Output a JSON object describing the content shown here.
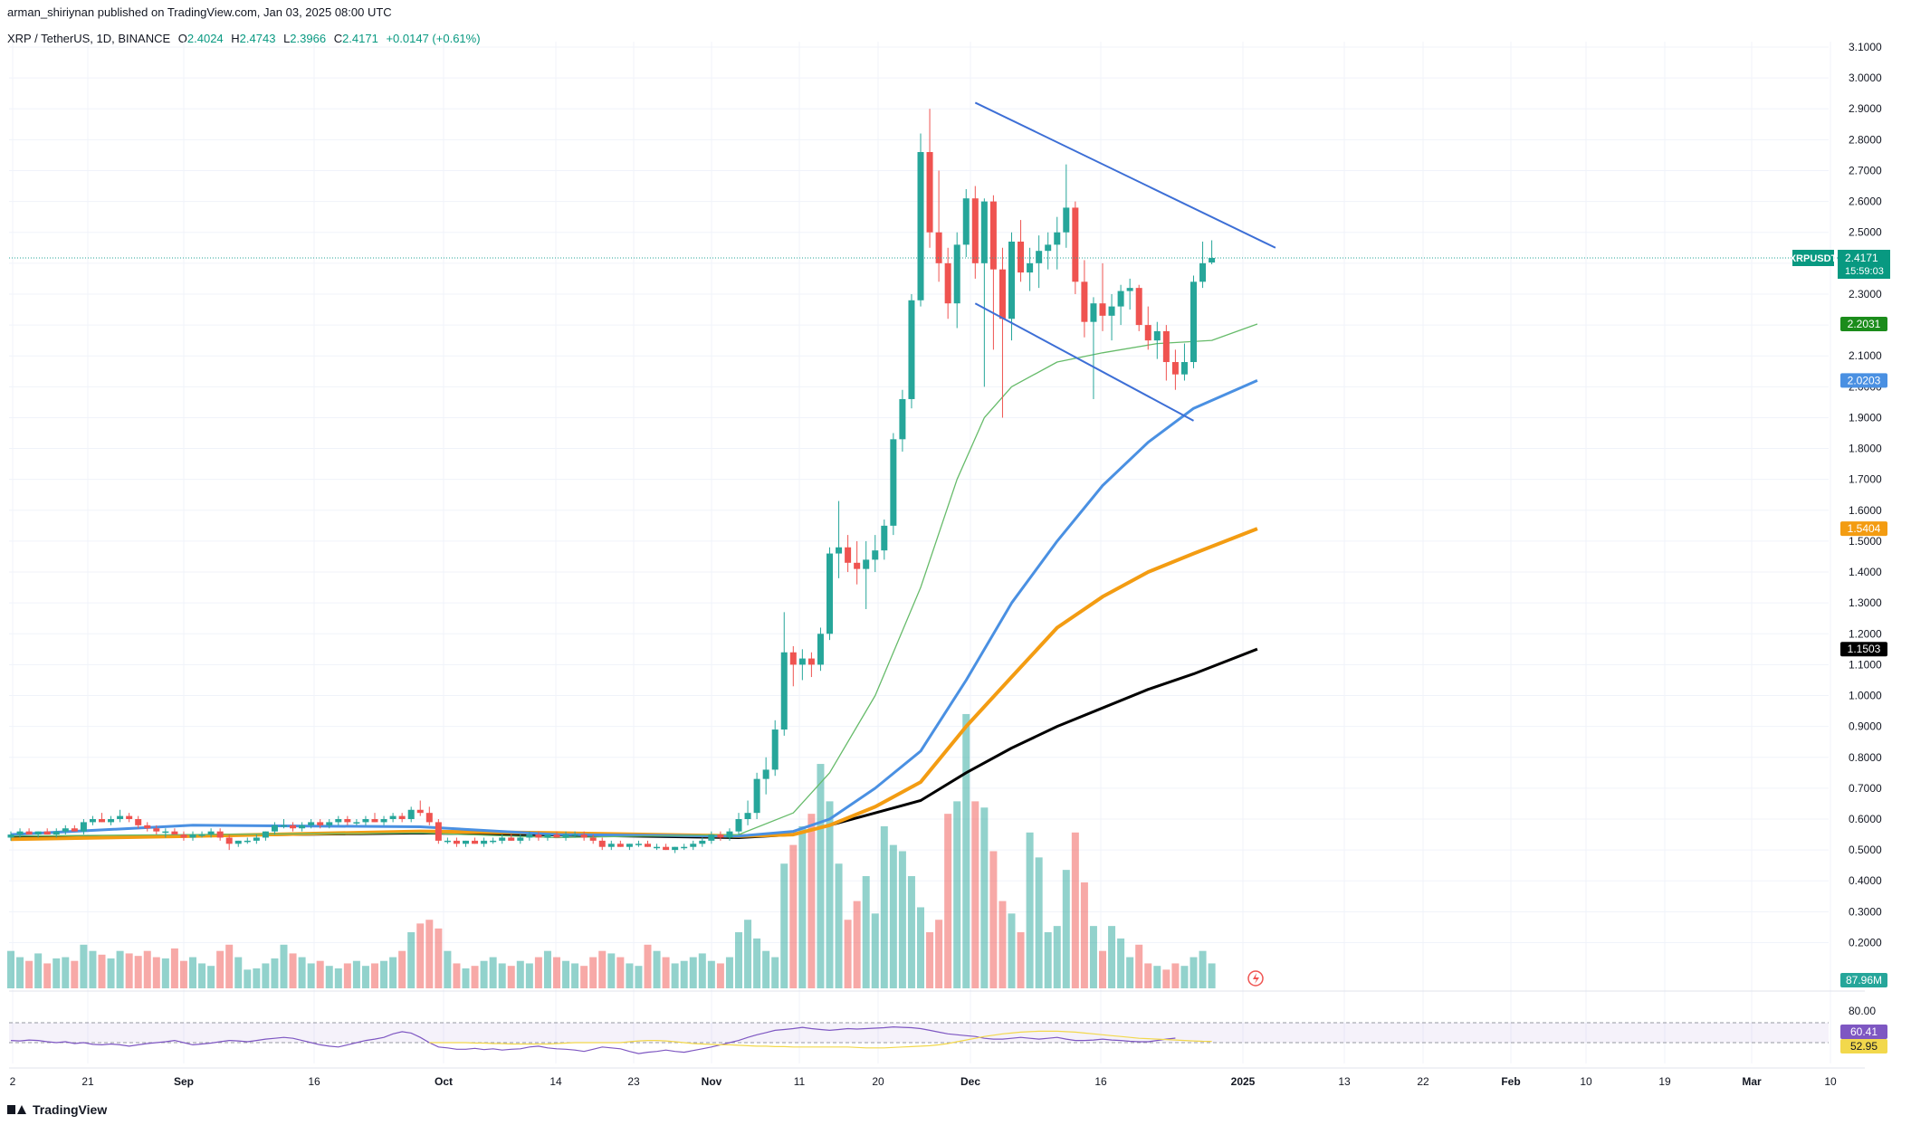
{
  "header": {
    "published_by": "arman_shiriynan published on TradingView.com, Jan 03, 2025 08:00 UTC"
  },
  "symbol": {
    "pair": "XRP / TetherUS, 1D, BINANCE",
    "o_label": "O",
    "o": "2.4024",
    "h_label": "H",
    "h": "2.4743",
    "l_label": "L",
    "l": "2.3966",
    "c_label": "C",
    "c": "2.4171",
    "change": "+0.0147 (+0.61%)"
  },
  "branding": {
    "logo_text": "TradingView"
  },
  "colors": {
    "up": "#26a69a",
    "down": "#ef5350",
    "ma20": "#66bb6a",
    "ma50": "#4a90e2",
    "ma100": "#f39c12",
    "ma200": "#000000",
    "trendline": "#3d6fd6",
    "rsi": "#7e57c2",
    "rsi_ma": "#f2d84c"
  },
  "chart_data": {
    "type": "candlestick",
    "price_axis": {
      "ticks": [
        "3.1000",
        "3.0000",
        "2.9000",
        "2.8000",
        "2.7000",
        "2.6000",
        "2.5000",
        "2.4000",
        "2.3000",
        "2.2000",
        "2.1000",
        "2.0000",
        "1.9000",
        "1.8000",
        "1.7000",
        "1.6000",
        "1.5000",
        "1.4000",
        "1.3000",
        "1.2000",
        "1.1000",
        "1.0000",
        "0.9000",
        "0.8000",
        "0.7000",
        "0.6000",
        "0.5000",
        "0.4000",
        "0.3000",
        "0.2000"
      ]
    },
    "time_axis": {
      "ticks": [
        "2",
        "21",
        "Sep",
        "16",
        "Oct",
        "14",
        "23",
        "Nov",
        "11",
        "20",
        "Dec",
        "16",
        "2025",
        "13",
        "22",
        "Feb",
        "10",
        "19",
        "Mar",
        "10"
      ]
    },
    "badges": [
      {
        "name": "last-price",
        "text": "XRPUSDT",
        "value": "2.4171",
        "sub": "15:59:03",
        "color": "#089981"
      },
      {
        "name": "ma20",
        "value": "2.2031",
        "color": "#1b8c1b"
      },
      {
        "name": "ma50",
        "value": "2.0203",
        "color": "#4a90e2"
      },
      {
        "name": "ma100",
        "value": "1.5404",
        "color": "#f39c12"
      },
      {
        "name": "ma200",
        "value": "1.1503",
        "color": "#000000"
      },
      {
        "name": "volume",
        "value": "87.96M",
        "color": "#26a69a"
      },
      {
        "name": "rsi",
        "value": "60.41",
        "color": "#7e57c2"
      },
      {
        "name": "rsi-ma",
        "value": "52.95",
        "color": "#f2d84c"
      }
    ],
    "rsi_axis": {
      "ticks": [
        "80.00"
      ]
    },
    "last_price": 2.4171,
    "candles": [
      [
        0.54,
        0.56,
        0.53,
        0.55
      ],
      [
        0.55,
        0.57,
        0.54,
        0.56
      ],
      [
        0.56,
        0.57,
        0.55,
        0.55
      ],
      [
        0.55,
        0.56,
        0.54,
        0.56
      ],
      [
        0.56,
        0.57,
        0.55,
        0.55
      ],
      [
        0.55,
        0.57,
        0.54,
        0.56
      ],
      [
        0.56,
        0.58,
        0.55,
        0.57
      ],
      [
        0.57,
        0.58,
        0.56,
        0.56
      ],
      [
        0.56,
        0.6,
        0.55,
        0.59
      ],
      [
        0.59,
        0.61,
        0.58,
        0.6
      ],
      [
        0.6,
        0.62,
        0.59,
        0.59
      ],
      [
        0.59,
        0.61,
        0.58,
        0.6
      ],
      [
        0.6,
        0.63,
        0.59,
        0.61
      ],
      [
        0.61,
        0.62,
        0.59,
        0.6
      ],
      [
        0.6,
        0.61,
        0.57,
        0.58
      ],
      [
        0.58,
        0.59,
        0.56,
        0.57
      ],
      [
        0.57,
        0.58,
        0.55,
        0.56
      ],
      [
        0.56,
        0.57,
        0.54,
        0.56
      ],
      [
        0.56,
        0.57,
        0.55,
        0.55
      ],
      [
        0.55,
        0.56,
        0.53,
        0.54
      ],
      [
        0.54,
        0.56,
        0.53,
        0.55
      ],
      [
        0.55,
        0.56,
        0.54,
        0.55
      ],
      [
        0.55,
        0.57,
        0.54,
        0.56
      ],
      [
        0.56,
        0.57,
        0.53,
        0.54
      ],
      [
        0.54,
        0.55,
        0.5,
        0.52
      ],
      [
        0.52,
        0.53,
        0.51,
        0.53
      ],
      [
        0.53,
        0.54,
        0.52,
        0.53
      ],
      [
        0.53,
        0.55,
        0.52,
        0.54
      ],
      [
        0.54,
        0.56,
        0.53,
        0.56
      ],
      [
        0.56,
        0.59,
        0.55,
        0.58
      ],
      [
        0.58,
        0.6,
        0.57,
        0.58
      ],
      [
        0.58,
        0.59,
        0.56,
        0.57
      ],
      [
        0.57,
        0.59,
        0.56,
        0.58
      ],
      [
        0.58,
        0.6,
        0.57,
        0.59
      ],
      [
        0.59,
        0.6,
        0.57,
        0.58
      ],
      [
        0.58,
        0.6,
        0.57,
        0.59
      ],
      [
        0.59,
        0.61,
        0.58,
        0.6
      ],
      [
        0.6,
        0.61,
        0.58,
        0.59
      ],
      [
        0.59,
        0.6,
        0.58,
        0.59
      ],
      [
        0.59,
        0.61,
        0.58,
        0.6
      ],
      [
        0.6,
        0.62,
        0.59,
        0.59
      ],
      [
        0.59,
        0.61,
        0.58,
        0.6
      ],
      [
        0.6,
        0.62,
        0.59,
        0.61
      ],
      [
        0.61,
        0.62,
        0.59,
        0.6
      ],
      [
        0.6,
        0.64,
        0.59,
        0.63
      ],
      [
        0.63,
        0.66,
        0.61,
        0.62
      ],
      [
        0.62,
        0.64,
        0.58,
        0.59
      ],
      [
        0.59,
        0.6,
        0.52,
        0.53
      ],
      [
        0.53,
        0.54,
        0.52,
        0.53
      ],
      [
        0.53,
        0.54,
        0.51,
        0.52
      ],
      [
        0.52,
        0.53,
        0.51,
        0.53
      ],
      [
        0.53,
        0.54,
        0.52,
        0.52
      ],
      [
        0.52,
        0.54,
        0.51,
        0.53
      ],
      [
        0.53,
        0.54,
        0.52,
        0.53
      ],
      [
        0.53,
        0.55,
        0.52,
        0.54
      ],
      [
        0.54,
        0.55,
        0.53,
        0.53
      ],
      [
        0.53,
        0.55,
        0.52,
        0.54
      ],
      [
        0.54,
        0.56,
        0.53,
        0.55
      ],
      [
        0.55,
        0.56,
        0.53,
        0.54
      ],
      [
        0.54,
        0.55,
        0.53,
        0.55
      ],
      [
        0.55,
        0.56,
        0.54,
        0.54
      ],
      [
        0.54,
        0.56,
        0.53,
        0.55
      ],
      [
        0.55,
        0.56,
        0.54,
        0.55
      ],
      [
        0.55,
        0.56,
        0.53,
        0.54
      ],
      [
        0.54,
        0.55,
        0.52,
        0.53
      ],
      [
        0.53,
        0.54,
        0.5,
        0.51
      ],
      [
        0.51,
        0.53,
        0.5,
        0.52
      ],
      [
        0.52,
        0.53,
        0.51,
        0.51
      ],
      [
        0.51,
        0.52,
        0.5,
        0.52
      ],
      [
        0.52,
        0.53,
        0.51,
        0.52
      ],
      [
        0.52,
        0.53,
        0.51,
        0.51
      ],
      [
        0.51,
        0.52,
        0.5,
        0.51
      ],
      [
        0.51,
        0.52,
        0.5,
        0.5
      ],
      [
        0.5,
        0.51,
        0.49,
        0.51
      ],
      [
        0.51,
        0.52,
        0.5,
        0.51
      ],
      [
        0.51,
        0.53,
        0.5,
        0.52
      ],
      [
        0.52,
        0.54,
        0.51,
        0.53
      ],
      [
        0.53,
        0.56,
        0.52,
        0.55
      ],
      [
        0.55,
        0.56,
        0.53,
        0.54
      ],
      [
        0.54,
        0.57,
        0.53,
        0.56
      ],
      [
        0.56,
        0.62,
        0.55,
        0.6
      ],
      [
        0.6,
        0.66,
        0.58,
        0.62
      ],
      [
        0.62,
        0.75,
        0.6,
        0.73
      ],
      [
        0.73,
        0.8,
        0.68,
        0.76
      ],
      [
        0.76,
        0.92,
        0.74,
        0.89
      ],
      [
        0.89,
        1.27,
        0.87,
        1.14
      ],
      [
        1.14,
        1.16,
        1.03,
        1.1
      ],
      [
        1.1,
        1.15,
        1.05,
        1.12
      ],
      [
        1.12,
        1.14,
        1.06,
        1.1
      ],
      [
        1.1,
        1.22,
        1.08,
        1.2
      ],
      [
        1.2,
        1.48,
        1.18,
        1.46
      ],
      [
        1.46,
        1.63,
        1.38,
        1.48
      ],
      [
        1.48,
        1.52,
        1.4,
        1.43
      ],
      [
        1.43,
        1.5,
        1.36,
        1.41
      ],
      [
        1.41,
        1.5,
        1.28,
        1.44
      ],
      [
        1.44,
        1.52,
        1.4,
        1.47
      ],
      [
        1.47,
        1.57,
        1.44,
        1.55
      ],
      [
        1.55,
        1.85,
        1.52,
        1.83
      ],
      [
        1.83,
        1.99,
        1.79,
        1.96
      ],
      [
        1.96,
        2.3,
        1.93,
        2.28
      ],
      [
        2.28,
        2.82,
        2.26,
        2.76
      ],
      [
        2.76,
        2.9,
        2.45,
        2.5
      ],
      [
        2.5,
        2.7,
        2.34,
        2.4
      ],
      [
        2.4,
        2.45,
        2.22,
        2.27
      ],
      [
        2.27,
        2.5,
        2.19,
        2.46
      ],
      [
        2.46,
        2.64,
        2.42,
        2.61
      ],
      [
        2.61,
        2.65,
        2.35,
        2.4
      ],
      [
        2.4,
        2.61,
        2.0,
        2.6
      ],
      [
        2.6,
        2.62,
        2.12,
        2.38
      ],
      [
        2.38,
        2.45,
        1.9,
        2.22
      ],
      [
        2.22,
        2.5,
        2.15,
        2.47
      ],
      [
        2.47,
        2.54,
        2.34,
        2.37
      ],
      [
        2.37,
        2.45,
        2.31,
        2.4
      ],
      [
        2.4,
        2.49,
        2.32,
        2.44
      ],
      [
        2.44,
        2.5,
        2.38,
        2.46
      ],
      [
        2.46,
        2.55,
        2.38,
        2.5
      ],
      [
        2.5,
        2.72,
        2.45,
        2.58
      ],
      [
        2.58,
        2.6,
        2.3,
        2.34
      ],
      [
        2.34,
        2.41,
        2.16,
        2.21
      ],
      [
        2.21,
        2.29,
        1.96,
        2.27
      ],
      [
        2.27,
        2.4,
        2.18,
        2.23
      ],
      [
        2.23,
        2.3,
        2.15,
        2.26
      ],
      [
        2.26,
        2.33,
        2.2,
        2.31
      ],
      [
        2.31,
        2.35,
        2.25,
        2.32
      ],
      [
        2.32,
        2.33,
        2.18,
        2.2
      ],
      [
        2.2,
        2.26,
        2.12,
        2.15
      ],
      [
        2.15,
        2.21,
        2.09,
        2.18
      ],
      [
        2.18,
        2.2,
        2.02,
        2.08
      ],
      [
        2.08,
        2.12,
        1.99,
        2.04
      ],
      [
        2.04,
        2.14,
        2.02,
        2.08
      ],
      [
        2.08,
        2.36,
        2.06,
        2.34
      ],
      [
        2.34,
        2.47,
        2.32,
        2.4
      ],
      [
        2.4024,
        2.4743,
        2.3966,
        2.4171
      ]
    ],
    "ma20": [
      [
        0,
        0.545
      ],
      [
        20,
        0.55
      ],
      [
        45,
        0.555
      ],
      [
        60,
        0.54
      ],
      [
        80,
        0.55
      ],
      [
        86,
        0.62
      ],
      [
        90,
        0.75
      ],
      [
        95,
        1.0
      ],
      [
        100,
        1.35
      ],
      [
        104,
        1.7
      ],
      [
        107,
        1.9
      ],
      [
        110,
        2.0
      ],
      [
        115,
        2.08
      ],
      [
        120,
        2.11
      ],
      [
        126,
        2.14
      ],
      [
        132,
        2.15
      ],
      [
        137,
        2.2031
      ]
    ],
    "ma50": [
      [
        0,
        0.55
      ],
      [
        20,
        0.58
      ],
      [
        45,
        0.575
      ],
      [
        60,
        0.55
      ],
      [
        80,
        0.545
      ],
      [
        86,
        0.56
      ],
      [
        90,
        0.6
      ],
      [
        95,
        0.7
      ],
      [
        100,
        0.82
      ],
      [
        105,
        1.05
      ],
      [
        110,
        1.3
      ],
      [
        115,
        1.5
      ],
      [
        120,
        1.68
      ],
      [
        125,
        1.82
      ],
      [
        130,
        1.93
      ],
      [
        137,
        2.0203
      ]
    ],
    "ma100": [
      [
        0,
        0.535
      ],
      [
        20,
        0.545
      ],
      [
        45,
        0.56
      ],
      [
        60,
        0.555
      ],
      [
        80,
        0.545
      ],
      [
        86,
        0.55
      ],
      [
        90,
        0.58
      ],
      [
        95,
        0.64
      ],
      [
        100,
        0.72
      ],
      [
        105,
        0.9
      ],
      [
        110,
        1.06
      ],
      [
        115,
        1.22
      ],
      [
        120,
        1.32
      ],
      [
        125,
        1.4
      ],
      [
        130,
        1.46
      ],
      [
        137,
        1.5404
      ]
    ],
    "ma200": [
      [
        0,
        0.54
      ],
      [
        45,
        0.555
      ],
      [
        80,
        0.54
      ],
      [
        86,
        0.55
      ],
      [
        90,
        0.58
      ],
      [
        95,
        0.62
      ],
      [
        100,
        0.66
      ],
      [
        105,
        0.75
      ],
      [
        110,
        0.83
      ],
      [
        115,
        0.9
      ],
      [
        120,
        0.96
      ],
      [
        125,
        1.02
      ],
      [
        130,
        1.07
      ],
      [
        137,
        1.1503
      ]
    ],
    "trendlines": [
      [
        [
          106,
          2.92
        ],
        [
          139,
          2.45
        ]
      ],
      [
        [
          106,
          2.27
        ],
        [
          130,
          1.89
        ]
      ]
    ],
    "volume": [
      0.3,
      0.25,
      0.22,
      0.28,
      0.2,
      0.24,
      0.25,
      0.22,
      0.35,
      0.3,
      0.27,
      0.24,
      0.3,
      0.28,
      0.26,
      0.3,
      0.25,
      0.24,
      0.32,
      0.22,
      0.25,
      0.2,
      0.18,
      0.3,
      0.35,
      0.25,
      0.15,
      0.16,
      0.2,
      0.24,
      0.35,
      0.28,
      0.25,
      0.2,
      0.22,
      0.18,
      0.16,
      0.2,
      0.22,
      0.18,
      0.2,
      0.22,
      0.25,
      0.3,
      0.45,
      0.52,
      0.55,
      0.48,
      0.3,
      0.2,
      0.16,
      0.18,
      0.22,
      0.25,
      0.2,
      0.18,
      0.22,
      0.2,
      0.25,
      0.3,
      0.25,
      0.22,
      0.2,
      0.18,
      0.25,
      0.3,
      0.28,
      0.25,
      0.2,
      0.18,
      0.35,
      0.3,
      0.25,
      0.2,
      0.22,
      0.25,
      0.28,
      0.22,
      0.2,
      0.25,
      0.45,
      0.55,
      0.4,
      0.3,
      0.25,
      1.0,
      1.15,
      1.3,
      1.4,
      1.8,
      1.5,
      1.0,
      0.55,
      0.7,
      0.9,
      0.6,
      1.3,
      1.15,
      1.1,
      0.9,
      0.65,
      0.45,
      0.55,
      1.4,
      1.5,
      2.2,
      1.5,
      1.45,
      1.1,
      0.7,
      0.6,
      0.45,
      1.25,
      1.05,
      0.45,
      0.5,
      0.95,
      1.25,
      0.85,
      0.5,
      0.3,
      0.5,
      0.4,
      0.25,
      0.35,
      0.2,
      0.18,
      0.15,
      0.2,
      0.18,
      0.25,
      0.3,
      0.2,
      0.15,
      0.18,
      0.25,
      0.3,
      0.32,
      0.35
    ],
    "rsi": [
      0.55,
      0.54,
      0.56,
      0.55,
      0.52,
      0.5,
      0.52,
      0.48,
      0.5,
      0.46,
      0.45,
      0.47,
      0.45,
      0.42,
      0.45,
      0.48,
      0.5,
      0.52,
      0.55,
      0.5,
      0.45,
      0.47,
      0.49,
      0.52,
      0.55,
      0.54,
      0.52,
      0.55,
      0.58,
      0.6,
      0.62,
      0.6,
      0.55,
      0.5,
      0.45,
      0.42,
      0.4,
      0.45,
      0.5,
      0.55,
      0.58,
      0.62,
      0.7,
      0.75,
      0.72,
      0.62,
      0.5,
      0.4,
      0.38,
      0.35,
      0.35,
      0.37,
      0.34,
      0.36,
      0.33,
      0.35,
      0.36,
      0.4,
      0.42,
      0.38,
      0.36,
      0.35,
      0.33,
      0.3,
      0.35,
      0.4,
      0.38,
      0.36,
      0.3,
      0.25,
      0.28,
      0.3,
      0.33,
      0.3,
      0.28,
      0.32,
      0.36,
      0.4,
      0.45,
      0.5,
      0.55,
      0.62,
      0.68,
      0.73,
      0.78,
      0.8,
      0.82,
      0.85,
      0.82,
      0.8,
      0.78,
      0.8,
      0.82,
      0.81,
      0.82,
      0.83,
      0.84,
      0.86,
      0.85,
      0.84,
      0.82,
      0.78,
      0.74,
      0.7,
      0.68,
      0.66,
      0.64,
      0.6,
      0.58,
      0.58,
      0.6,
      0.62,
      0.6,
      0.58,
      0.6,
      0.62,
      0.58,
      0.55,
      0.55,
      0.56,
      0.58,
      0.56,
      0.55,
      0.53,
      0.52,
      0.52,
      0.55,
      0.58,
      0.6041
    ],
    "rsi_ma": [
      0.5,
      0.5,
      0.5,
      0.5,
      0.5,
      0.49,
      0.49,
      0.48,
      0.48,
      0.47,
      0.47,
      0.47,
      0.47,
      0.47,
      0.48,
      0.49,
      0.5,
      0.5,
      0.5,
      0.5,
      0.5,
      0.5,
      0.52,
      0.54,
      0.55,
      0.55,
      0.54,
      0.52,
      0.5,
      0.48,
      0.47,
      0.46,
      0.45,
      0.45,
      0.44,
      0.43,
      0.42,
      0.42,
      0.41,
      0.41,
      0.4,
      0.4,
      0.4,
      0.4,
      0.4,
      0.4,
      0.4,
      0.39,
      0.38,
      0.38,
      0.38,
      0.39,
      0.4,
      0.41,
      0.42,
      0.43,
      0.45,
      0.48,
      0.52,
      0.56,
      0.6,
      0.64,
      0.67,
      0.7,
      0.72,
      0.74,
      0.75,
      0.76,
      0.76,
      0.76,
      0.75,
      0.74,
      0.72,
      0.7,
      0.68,
      0.66,
      0.64,
      0.62,
      0.6,
      0.59,
      0.58,
      0.57,
      0.56,
      0.55,
      0.54,
      0.53,
      0.5295
    ]
  }
}
